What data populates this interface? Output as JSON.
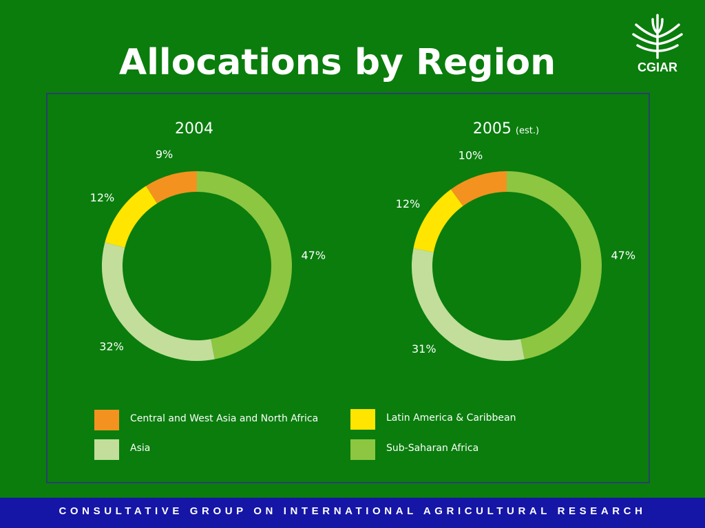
{
  "slide": {
    "title": "Allocations by Region",
    "logo_text": "CGIAR",
    "footer": "CONSULTATIVE GROUP ON INTERNATIONAL AGRICULTURAL RESEARCH"
  },
  "colors": {
    "background": "#0a7d0d",
    "footer_bg": "#1515a6",
    "cwana": "#f4921f",
    "lac": "#ffe500",
    "asia": "#c2de9a",
    "ssa": "#8dc641"
  },
  "chart_data": [
    {
      "type": "pie",
      "title": "2004",
      "title_note": "",
      "categories": [
        "Sub-Saharan Africa",
        "Asia",
        "Latin America & Caribbean",
        "Central and West Asia and North Africa"
      ],
      "values": [
        47,
        32,
        12,
        9
      ],
      "labels": [
        "47%",
        "32%",
        "12%",
        "9%"
      ]
    },
    {
      "type": "pie",
      "title": "2005",
      "title_note": "(est.)",
      "categories": [
        "Sub-Saharan Africa",
        "Asia",
        "Latin America & Caribbean",
        "Central and West Asia and North Africa"
      ],
      "values": [
        47,
        31,
        12,
        10
      ],
      "labels": [
        "47%",
        "31%",
        "12%",
        "10%"
      ]
    }
  ],
  "legend": [
    {
      "label": "Central and West Asia and North Africa",
      "color": "#f4921f"
    },
    {
      "label": "Latin America & Caribbean",
      "color": "#ffe500"
    },
    {
      "label": "Asia",
      "color": "#c2de9a"
    },
    {
      "label": "Sub-Saharan Africa",
      "color": "#8dc641"
    }
  ]
}
